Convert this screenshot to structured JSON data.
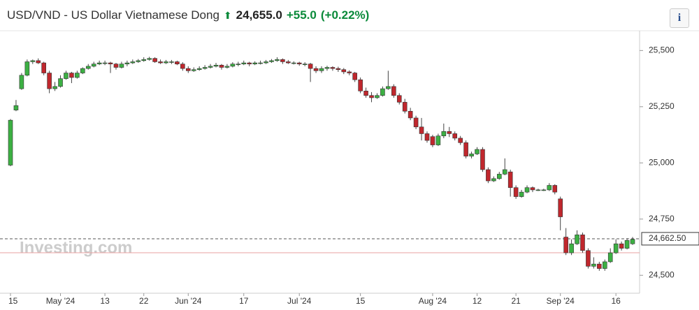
{
  "header": {
    "title": "USD/VND - US Dollar Vietnamese Dong",
    "price": "24,655.0",
    "change": "+55.0",
    "change_pct": "(+0.22%)",
    "info": "i"
  },
  "chart_data": {
    "type": "candlestick",
    "watermark": "Investing.com",
    "categories": [
      "15",
      null,
      null,
      null,
      null,
      null,
      null,
      null,
      null,
      "May '24",
      null,
      null,
      null,
      null,
      null,
      null,
      null,
      "13",
      null,
      null,
      null,
      null,
      null,
      null,
      "22",
      null,
      null,
      null,
      null,
      null,
      null,
      null,
      "Jun '24",
      null,
      null,
      null,
      null,
      null,
      null,
      null,
      null,
      null,
      "17",
      null,
      null,
      null,
      null,
      null,
      null,
      null,
      null,
      null,
      "Jul '24",
      null,
      null,
      null,
      null,
      null,
      null,
      null,
      null,
      null,
      null,
      "15",
      null,
      null,
      null,
      null,
      null,
      null,
      null,
      null,
      null,
      null,
      null,
      null,
      "Aug '24",
      null,
      null,
      null,
      null,
      null,
      null,
      null,
      "12",
      null,
      null,
      null,
      null,
      null,
      null,
      "21",
      null,
      null,
      null,
      null,
      null,
      null,
      null,
      "Sep '24",
      null,
      null,
      null,
      null,
      null,
      null,
      null,
      null,
      null,
      "16",
      null,
      null,
      null
    ],
    "ohlc": [
      [
        24990,
        25195,
        24985,
        25190
      ],
      [
        25235,
        25280,
        25230,
        25255
      ],
      [
        25330,
        25400,
        25325,
        25390
      ],
      [
        25390,
        25460,
        25385,
        25450
      ],
      [
        25450,
        25460,
        25440,
        25455
      ],
      [
        25455,
        25465,
        25440,
        25445
      ],
      [
        25445,
        25450,
        25390,
        25400
      ],
      [
        25400,
        25410,
        25310,
        25330
      ],
      [
        25330,
        25360,
        25320,
        25340
      ],
      [
        25340,
        25390,
        25335,
        25375
      ],
      [
        25375,
        25410,
        25370,
        25400
      ],
      [
        25400,
        25405,
        25355,
        25380
      ],
      [
        25380,
        25410,
        25375,
        25400
      ],
      [
        25400,
        25425,
        25395,
        25420
      ],
      [
        25420,
        25440,
        25415,
        25430
      ],
      [
        25430,
        25450,
        25425,
        25440
      ],
      [
        25440,
        25455,
        25435,
        25445
      ],
      [
        25445,
        25455,
        25435,
        25445
      ],
      [
        25445,
        25450,
        25400,
        25440
      ],
      [
        25440,
        25445,
        25415,
        25425
      ],
      [
        25425,
        25450,
        25420,
        25440
      ],
      [
        25440,
        25455,
        25430,
        25445
      ],
      [
        25445,
        25460,
        25440,
        25450
      ],
      [
        25450,
        25462,
        25445,
        25455
      ],
      [
        25455,
        25470,
        25450,
        25460
      ],
      [
        25460,
        25472,
        25455,
        25465
      ],
      [
        25465,
        25470,
        25445,
        25450
      ],
      [
        25450,
        25460,
        25440,
        25445
      ],
      [
        25445,
        25458,
        25440,
        25450
      ],
      [
        25450,
        25458,
        25440,
        25450
      ],
      [
        25450,
        25455,
        25435,
        25440
      ],
      [
        25440,
        25448,
        25410,
        25420
      ],
      [
        25420,
        25430,
        25400,
        25410
      ],
      [
        25410,
        25425,
        25405,
        25415
      ],
      [
        25415,
        25430,
        25410,
        25420
      ],
      [
        25420,
        25435,
        25415,
        25425
      ],
      [
        25425,
        25440,
        25420,
        25430
      ],
      [
        25430,
        25445,
        25425,
        25435
      ],
      [
        25435,
        25440,
        25415,
        25425
      ],
      [
        25425,
        25440,
        25420,
        25430
      ],
      [
        25430,
        25448,
        25425,
        25440
      ],
      [
        25440,
        25450,
        25430,
        25440
      ],
      [
        25440,
        25455,
        25435,
        25445
      ],
      [
        25445,
        25450,
        25430,
        25440
      ],
      [
        25440,
        25452,
        25435,
        25445
      ],
      [
        25445,
        25455,
        25438,
        25445
      ],
      [
        25445,
        25458,
        25440,
        25450
      ],
      [
        25450,
        25462,
        25445,
        25455
      ],
      [
        25455,
        25470,
        25450,
        25460
      ],
      [
        25460,
        25465,
        25440,
        25450
      ],
      [
        25450,
        25458,
        25440,
        25445
      ],
      [
        25445,
        25452,
        25438,
        25445
      ],
      [
        25445,
        25450,
        25432,
        25440
      ],
      [
        25440,
        25448,
        25430,
        25440
      ],
      [
        25440,
        25445,
        25360,
        25420
      ],
      [
        25420,
        25430,
        25400,
        25410
      ],
      [
        25410,
        25430,
        25400,
        25420
      ],
      [
        25420,
        25432,
        25410,
        25425
      ],
      [
        25425,
        25430,
        25410,
        25420
      ],
      [
        25420,
        25428,
        25405,
        25415
      ],
      [
        25415,
        25422,
        25395,
        25405
      ],
      [
        25405,
        25412,
        25390,
        25400
      ],
      [
        25400,
        25405,
        25360,
        25370
      ],
      [
        25370,
        25380,
        25310,
        25320
      ],
      [
        25320,
        25335,
        25290,
        25300
      ],
      [
        25300,
        25315,
        25270,
        25290
      ],
      [
        25290,
        25310,
        25285,
        25300
      ],
      [
        25300,
        25340,
        25295,
        25330
      ],
      [
        25330,
        25410,
        25325,
        25340
      ],
      [
        25340,
        25350,
        25290,
        25300
      ],
      [
        25300,
        25310,
        25260,
        25270
      ],
      [
        25270,
        25285,
        25220,
        25230
      ],
      [
        25230,
        25245,
        25190,
        25200
      ],
      [
        25200,
        25210,
        25150,
        25160
      ],
      [
        25160,
        25200,
        25100,
        25130
      ],
      [
        25130,
        25140,
        25090,
        25100
      ],
      [
        25117,
        25125,
        25070,
        25080
      ],
      [
        25080,
        25130,
        25075,
        25120
      ],
      [
        25120,
        25175,
        25110,
        25140
      ],
      [
        25140,
        25160,
        25115,
        25130
      ],
      [
        25130,
        25140,
        25100,
        25110
      ],
      [
        25110,
        25120,
        25080,
        25090
      ],
      [
        25090,
        25100,
        25020,
        25030
      ],
      [
        25030,
        25050,
        25020,
        25040
      ],
      [
        25040,
        25070,
        25035,
        25060
      ],
      [
        25060,
        25070,
        24960,
        24970
      ],
      [
        24970,
        24980,
        24910,
        24920
      ],
      [
        24920,
        24940,
        24915,
        24930
      ],
      [
        24930,
        24960,
        24925,
        24950
      ],
      [
        24950,
        25020,
        24945,
        24970
      ],
      [
        24960,
        24970,
        24850,
        24890
      ],
      [
        24890,
        24900,
        24840,
        24850
      ],
      [
        24850,
        24880,
        24845,
        24870
      ],
      [
        24870,
        24900,
        24865,
        24890
      ],
      [
        24890,
        24895,
        24870,
        24880
      ],
      [
        24880,
        24885,
        24875,
        24880
      ],
      [
        24880,
        24885,
        24875,
        24880
      ],
      [
        24880,
        24910,
        24875,
        24900
      ],
      [
        24900,
        24905,
        24860,
        24870
      ],
      [
        24840,
        24850,
        24700,
        24760
      ],
      [
        24670,
        24710,
        24590,
        24600
      ],
      [
        24600,
        24660,
        24590,
        24640
      ],
      [
        24640,
        24700,
        24635,
        24680
      ],
      [
        24680,
        24690,
        24600,
        24610
      ],
      [
        24610,
        24620,
        24530,
        24540
      ],
      [
        24540,
        24580,
        24530,
        24550
      ],
      [
        24550,
        24560,
        24520,
        24530
      ],
      [
        24530,
        24570,
        24520,
        24560
      ],
      [
        24560,
        24620,
        24555,
        24600
      ],
      [
        24600,
        24660,
        24595,
        24640
      ],
      [
        24640,
        24650,
        24610,
        24620
      ],
      [
        24620,
        24665,
        24615,
        24655
      ],
      [
        24640,
        24670,
        24635,
        24660
      ]
    ],
    "up_color": "#3cb043",
    "down_color": "#c0272d",
    "ylim": [
      24420,
      25585
    ],
    "yticks": [
      {
        "value": 24500,
        "label": "24,500"
      },
      {
        "value": 24750,
        "label": "24,750"
      },
      {
        "value": 25000,
        "label": "25,000"
      },
      {
        "value": 25250,
        "label": "25,250"
      },
      {
        "value": 25500,
        "label": "25,500"
      }
    ],
    "current": {
      "value": 24662.5,
      "label": "24,662.50"
    },
    "prev_close": 24600
  }
}
